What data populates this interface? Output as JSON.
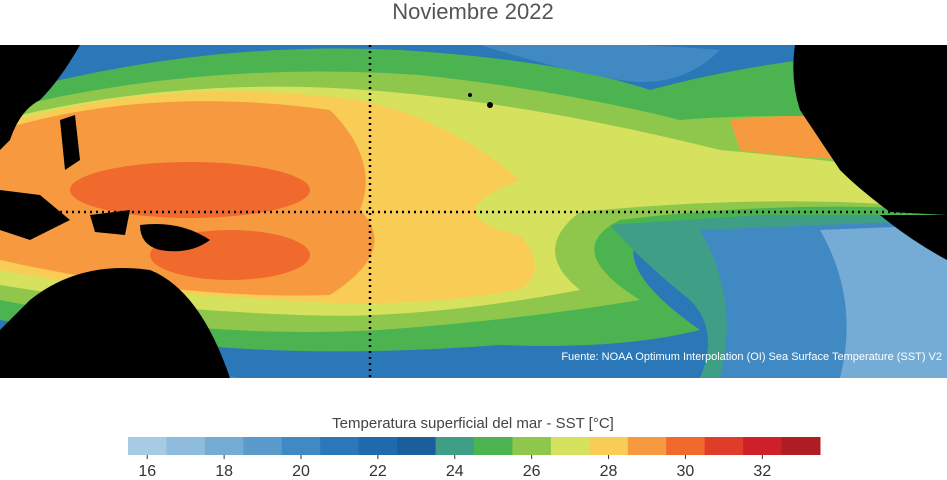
{
  "title": "Noviembre 2022",
  "source": "Fuente: NOAA Optimum Interpolation (OI) Sea Surface Temperature (SST) V2",
  "colorbar": {
    "label": "Temperatura superficial del mar - SST  [°C]",
    "range": [
      15.5,
      33.5
    ],
    "ticks": [
      16,
      18,
      20,
      22,
      24,
      26,
      28,
      30,
      32
    ],
    "colors": [
      "#a6cbe3",
      "#8fbcdc",
      "#74acd5",
      "#5b9bcc",
      "#4189c2",
      "#2a78b8",
      "#1f6aac",
      "#1a5e9c",
      "#3f9f86",
      "#4bb451",
      "#8ec74c",
      "#d6e25e",
      "#f8cc55",
      "#f79a3f",
      "#f06a2e",
      "#e03c2a",
      "#cf1f2a",
      "#b01c24"
    ]
  }
}
